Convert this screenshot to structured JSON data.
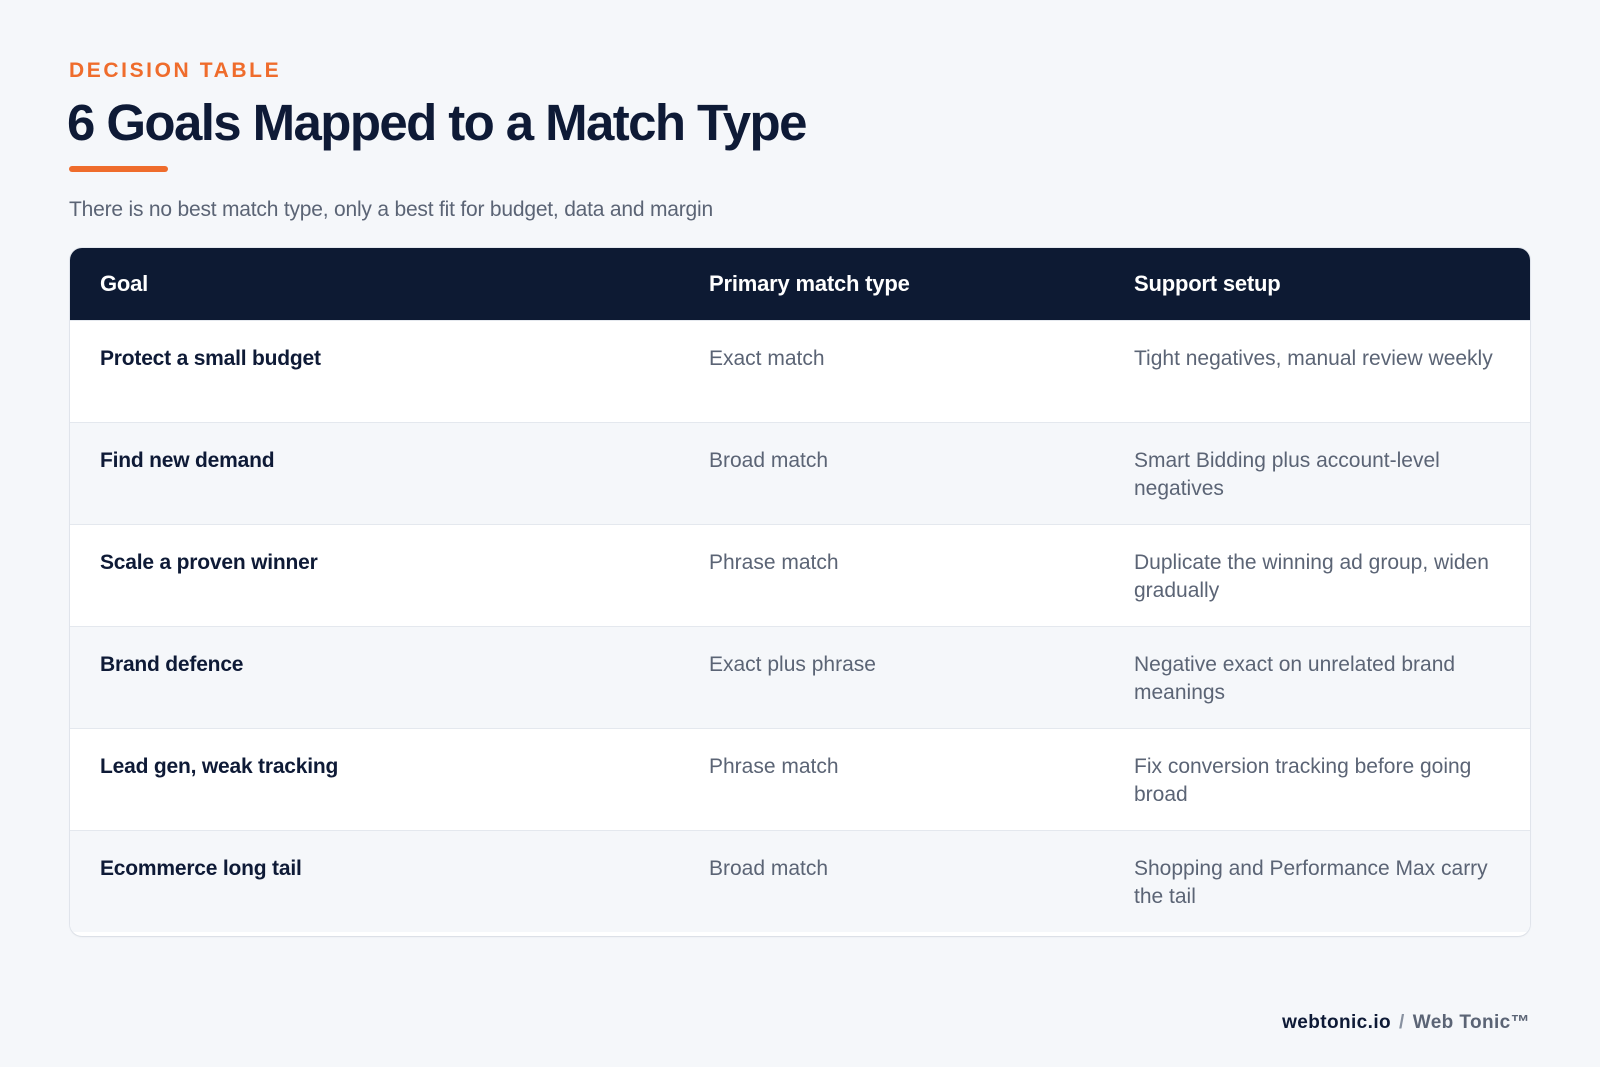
{
  "header": {
    "eyebrow": "DECISION TABLE",
    "title": "6 Goals Mapped to a Match Type",
    "subtitle": "There is no best match type, only a best fit for budget, data and margin"
  },
  "table": {
    "columns": [
      "Goal",
      "Primary match type",
      "Support setup"
    ],
    "rows": [
      {
        "goal": "Protect a small budget",
        "match_type": "Exact match",
        "setup": "Tight negatives, manual review weekly"
      },
      {
        "goal": "Find new demand",
        "match_type": "Broad match",
        "setup": "Smart Bidding plus account-level negatives"
      },
      {
        "goal": "Scale a proven winner",
        "match_type": "Phrase match",
        "setup": "Duplicate the winning ad group, widen gradually"
      },
      {
        "goal": "Brand defence",
        "match_type": "Exact plus phrase",
        "setup": "Negative exact on unrelated brand meanings"
      },
      {
        "goal": "Lead gen, weak tracking",
        "match_type": "Phrase match",
        "setup": "Fix conversion tracking before going broad"
      },
      {
        "goal": "Ecommerce long tail",
        "match_type": "Broad match",
        "setup": "Shopping and Performance Max carry the tail"
      }
    ]
  },
  "footer": {
    "domain": "webtonic.io",
    "separator": "/",
    "brand": "Web Tonic™"
  },
  "colors": {
    "accent": "#ef6c2c",
    "header_bg": "#0d1a33",
    "page_bg": "#f5f7fa",
    "text_dark": "#0e1a36",
    "text_muted": "#5b6475"
  }
}
